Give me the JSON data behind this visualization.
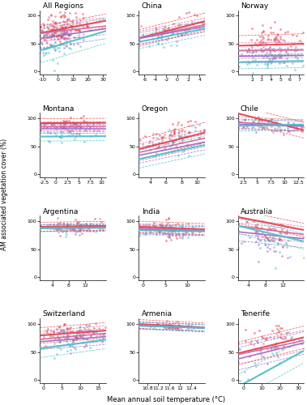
{
  "panels": [
    {
      "title": "All Regions",
      "xlim": [
        -12,
        32
      ],
      "xticks": [
        -10,
        0,
        10,
        20,
        30
      ],
      "ylim": [
        -5,
        110
      ],
      "yticks": [
        0,
        50,
        100
      ],
      "lines": [
        {
          "intercept": 80,
          "slope": 0.5,
          "ci": 12,
          "color": "#e8434b",
          "lw": 1.5
        },
        {
          "intercept": 75,
          "slope": 0.3,
          "ci": 15,
          "color": "#d4669c",
          "lw": 1.2
        },
        {
          "intercept": 68,
          "slope": 0.4,
          "ci": 18,
          "color": "#9b6bc8",
          "lw": 1.2
        },
        {
          "intercept": 55,
          "slope": 0.8,
          "ci": 22,
          "color": "#4dc0c8",
          "lw": 1.5
        }
      ],
      "scatter": [
        {
          "color": "#e8434b",
          "n": 80,
          "xmean": 2,
          "xstd": 8,
          "ymean": 80,
          "ystd": 20,
          "slope": 0.5
        },
        {
          "color": "#d4669c",
          "n": 60,
          "xmean": 2,
          "xstd": 8,
          "ymean": 72,
          "ystd": 22,
          "slope": 0.3
        },
        {
          "color": "#9b6bc8",
          "n": 60,
          "xmean": 2,
          "xstd": 8,
          "ymean": 62,
          "ystd": 25,
          "slope": 0.4
        },
        {
          "color": "#4dc0c8",
          "n": 50,
          "xmean": 2,
          "xstd": 8,
          "ymean": 50,
          "ystd": 28,
          "slope": 0.8
        }
      ]
    },
    {
      "title": "China",
      "xlim": [
        -7,
        5
      ],
      "xticks": [
        -6,
        -4,
        -2,
        0,
        2,
        4
      ],
      "ylim": [
        -5,
        110
      ],
      "yticks": [
        0,
        50,
        100
      ],
      "lines": [
        {
          "intercept": 75,
          "slope": 2.5,
          "ci": 15,
          "color": "#e8434b",
          "lw": 1.5
        },
        {
          "intercept": 72,
          "slope": 2.0,
          "ci": 12,
          "color": "#d4669c",
          "lw": 1.2
        },
        {
          "intercept": 70,
          "slope": 1.8,
          "ci": 10,
          "color": "#9b6bc8",
          "lw": 1.2
        },
        {
          "intercept": 65,
          "slope": 2.0,
          "ci": 12,
          "color": "#4dc0c8",
          "lw": 1.5
        }
      ],
      "scatter": [
        {
          "color": "#e8434b",
          "n": 20,
          "xmean": -1,
          "xstd": 3,
          "ymean": 78,
          "ystd": 18,
          "slope": 2.5
        },
        {
          "color": "#d4669c",
          "n": 15,
          "xmean": -1,
          "xstd": 3,
          "ymean": 72,
          "ystd": 15,
          "slope": 2.0
        },
        {
          "color": "#9b6bc8",
          "n": 15,
          "xmean": -1,
          "xstd": 3,
          "ymean": 68,
          "ystd": 12,
          "slope": 1.8
        },
        {
          "color": "#4dc0c8",
          "n": 15,
          "xmean": -1,
          "xstd": 3,
          "ymean": 62,
          "ystd": 15,
          "slope": 2.0
        }
      ]
    },
    {
      "title": "Norway",
      "xlim": [
        0.5,
        7.5
      ],
      "xticks": [
        2,
        3,
        4,
        5,
        6,
        7
      ],
      "ylim": [
        -5,
        110
      ],
      "yticks": [
        0,
        50,
        100
      ],
      "lines": [
        {
          "intercept": 48,
          "slope": 0.5,
          "ci": 18,
          "color": "#e8434b",
          "lw": 1.5
        },
        {
          "intercept": 38,
          "slope": 0.2,
          "ci": 14,
          "color": "#d4669c",
          "lw": 1.2
        },
        {
          "intercept": 28,
          "slope": 0.2,
          "ci": 12,
          "color": "#9b6bc8",
          "lw": 1.2
        },
        {
          "intercept": 18,
          "slope": 0.3,
          "ci": 12,
          "color": "#4dc0c8",
          "lw": 1.5
        }
      ],
      "scatter": [
        {
          "color": "#e8434b",
          "n": 45,
          "xmean": 4,
          "xstd": 1.5,
          "ymean": 55,
          "ystd": 22,
          "slope": 0.5
        },
        {
          "color": "#d4669c",
          "n": 35,
          "xmean": 4,
          "xstd": 1.5,
          "ymean": 42,
          "ystd": 18,
          "slope": 0.2
        },
        {
          "color": "#9b6bc8",
          "n": 35,
          "xmean": 4,
          "xstd": 1.5,
          "ymean": 32,
          "ystd": 15,
          "slope": 0.2
        },
        {
          "color": "#4dc0c8",
          "n": 30,
          "xmean": 4,
          "xstd": 1.5,
          "ymean": 18,
          "ystd": 12,
          "slope": 0.3
        }
      ]
    },
    {
      "title": "Montana",
      "xlim": [
        -3.5,
        11
      ],
      "xticks": [
        -2.5,
        0.0,
        2.5,
        5.0,
        7.5,
        10.0
      ],
      "ylim": [
        -5,
        110
      ],
      "yticks": [
        0,
        50,
        100
      ],
      "lines": [
        {
          "intercept": 92,
          "slope": 0.05,
          "ci": 8,
          "color": "#e8434b",
          "lw": 1.5
        },
        {
          "intercept": 86,
          "slope": 0.05,
          "ci": 8,
          "color": "#d4669c",
          "lw": 1.2
        },
        {
          "intercept": 82,
          "slope": 0.0,
          "ci": 8,
          "color": "#9b6bc8",
          "lw": 1.2
        },
        {
          "intercept": 68,
          "slope": 0.05,
          "ci": 8,
          "color": "#4dc0c8",
          "lw": 1.5
        }
      ],
      "scatter": [
        {
          "color": "#e8434b",
          "n": 30,
          "xmean": 3,
          "xstd": 3,
          "ymean": 90,
          "ystd": 10,
          "slope": 0.05
        },
        {
          "color": "#d4669c",
          "n": 25,
          "xmean": 3,
          "xstd": 3,
          "ymean": 85,
          "ystd": 8,
          "slope": 0.05
        },
        {
          "color": "#9b6bc8",
          "n": 25,
          "xmean": 3,
          "xstd": 3,
          "ymean": 80,
          "ystd": 10,
          "slope": 0.0
        },
        {
          "color": "#4dc0c8",
          "n": 20,
          "xmean": 3,
          "xstd": 3,
          "ymean": 68,
          "ystd": 12,
          "slope": 0.05
        }
      ]
    },
    {
      "title": "Oregon",
      "xlim": [
        2.5,
        11
      ],
      "xticks": [
        4,
        6,
        8,
        10
      ],
      "ylim": [
        -5,
        110
      ],
      "yticks": [
        0,
        50,
        100
      ],
      "lines": [
        {
          "intercept": 60,
          "slope": 3.5,
          "ci": 18,
          "color": "#e8434b",
          "lw": 1.5
        },
        {
          "intercept": 52,
          "slope": 3.0,
          "ci": 15,
          "color": "#d4669c",
          "lw": 1.2
        },
        {
          "intercept": 46,
          "slope": 2.8,
          "ci": 14,
          "color": "#9b6bc8",
          "lw": 1.2
        },
        {
          "intercept": 40,
          "slope": 3.0,
          "ci": 16,
          "color": "#4dc0c8",
          "lw": 1.5
        }
      ],
      "scatter": [
        {
          "color": "#e8434b",
          "n": 35,
          "xmean": 7,
          "xstd": 2,
          "ymean": 75,
          "ystd": 18,
          "slope": 3.5
        },
        {
          "color": "#d4669c",
          "n": 28,
          "xmean": 7,
          "xstd": 2,
          "ymean": 65,
          "ystd": 16,
          "slope": 3.0
        },
        {
          "color": "#9b6bc8",
          "n": 28,
          "xmean": 7,
          "xstd": 2,
          "ymean": 60,
          "ystd": 16,
          "slope": 2.8
        },
        {
          "color": "#4dc0c8",
          "n": 25,
          "xmean": 7,
          "xstd": 2,
          "ymean": 55,
          "ystd": 18,
          "slope": 3.0
        }
      ]
    },
    {
      "title": "Chile",
      "xlim": [
        1.5,
        13.5
      ],
      "xticks": [
        2.5,
        5.0,
        7.5,
        10.0,
        12.5
      ],
      "ylim": [
        -5,
        110
      ],
      "yticks": [
        0,
        50,
        100
      ],
      "lines": [
        {
          "intercept": 94,
          "slope": -2.5,
          "ci": 14,
          "color": "#e8434b",
          "lw": 1.5
        },
        {
          "intercept": 90,
          "slope": -0.5,
          "ci": 10,
          "color": "#d4669c",
          "lw": 1.2
        },
        {
          "intercept": 88,
          "slope": -0.3,
          "ci": 9,
          "color": "#9b6bc8",
          "lw": 1.2
        },
        {
          "intercept": 88,
          "slope": 0.2,
          "ci": 9,
          "color": "#4dc0c8",
          "lw": 1.5
        }
      ],
      "scatter": [
        {
          "color": "#e8434b",
          "n": 25,
          "xmean": 7,
          "xstd": 3,
          "ymean": 88,
          "ystd": 14,
          "slope": -2.5
        },
        {
          "color": "#d4669c",
          "n": 20,
          "xmean": 7,
          "xstd": 3,
          "ymean": 87,
          "ystd": 10,
          "slope": -0.5
        },
        {
          "color": "#9b6bc8",
          "n": 20,
          "xmean": 7,
          "xstd": 3,
          "ymean": 86,
          "ystd": 9,
          "slope": -0.3
        },
        {
          "color": "#4dc0c8",
          "n": 20,
          "xmean": 7,
          "xstd": 3,
          "ymean": 88,
          "ystd": 8,
          "slope": 0.2
        }
      ]
    },
    {
      "title": "Argentina",
      "xlim": [
        1,
        17
      ],
      "xticks": [
        4,
        8,
        12
      ],
      "ylim": [
        -5,
        110
      ],
      "yticks": [
        0,
        50,
        100
      ],
      "lines": [
        {
          "intercept": 91,
          "slope": 0.1,
          "ci": 8,
          "color": "#e8434b",
          "lw": 1.5
        },
        {
          "intercept": 89,
          "slope": 0.1,
          "ci": 6,
          "color": "#d4669c",
          "lw": 1.2
        },
        {
          "intercept": 88,
          "slope": 0.05,
          "ci": 6,
          "color": "#9b6bc8",
          "lw": 1.2
        },
        {
          "intercept": 88,
          "slope": 0.05,
          "ci": 6,
          "color": "#4dc0c8",
          "lw": 1.5
        }
      ],
      "scatter": [
        {
          "color": "#e8434b",
          "n": 30,
          "xmean": 9,
          "xstd": 3.5,
          "ymean": 90,
          "ystd": 12,
          "slope": 0.1
        },
        {
          "color": "#d4669c",
          "n": 25,
          "xmean": 9,
          "xstd": 3.5,
          "ymean": 88,
          "ystd": 10,
          "slope": 0.1
        },
        {
          "color": "#9b6bc8",
          "n": 25,
          "xmean": 9,
          "xstd": 3.5,
          "ymean": 87,
          "ystd": 10,
          "slope": 0.05
        },
        {
          "color": "#4dc0c8",
          "n": 25,
          "xmean": 9,
          "xstd": 3.5,
          "ymean": 87,
          "ystd": 10,
          "slope": 0.05
        }
      ]
    },
    {
      "title": "India",
      "xlim": [
        -1,
        14
      ],
      "xticks": [
        0,
        5,
        10
      ],
      "ylim": [
        -5,
        110
      ],
      "yticks": [
        0,
        50,
        100
      ],
      "lines": [
        {
          "intercept": 88,
          "slope": -0.3,
          "ci": 10,
          "color": "#e8434b",
          "lw": 1.5
        },
        {
          "intercept": 86,
          "slope": -0.2,
          "ci": 8,
          "color": "#d4669c",
          "lw": 1.2
        },
        {
          "intercept": 84,
          "slope": -0.2,
          "ci": 8,
          "color": "#9b6bc8",
          "lw": 1.2
        },
        {
          "intercept": 83,
          "slope": -0.15,
          "ci": 8,
          "color": "#4dc0c8",
          "lw": 1.5
        }
      ],
      "scatter": [
        {
          "color": "#e8434b",
          "n": 30,
          "xmean": 6,
          "xstd": 3,
          "ymean": 87,
          "ystd": 14,
          "slope": -0.3
        },
        {
          "color": "#d4669c",
          "n": 25,
          "xmean": 6,
          "xstd": 3,
          "ymean": 85,
          "ystd": 12,
          "slope": -0.2
        },
        {
          "color": "#9b6bc8",
          "n": 25,
          "xmean": 6,
          "xstd": 3,
          "ymean": 83,
          "ystd": 12,
          "slope": -0.2
        },
        {
          "color": "#4dc0c8",
          "n": 25,
          "xmean": 6,
          "xstd": 3,
          "ymean": 82,
          "ystd": 12,
          "slope": -0.15
        }
      ]
    },
    {
      "title": "Australia",
      "xlim": [
        1.5,
        17
      ],
      "xticks": [
        4,
        8,
        12
      ],
      "ylim": [
        -5,
        110
      ],
      "yticks": [
        0,
        50,
        100
      ],
      "lines": [
        {
          "intercept": 96,
          "slope": -1.5,
          "ci": 12,
          "color": "#e8434b",
          "lw": 1.5
        },
        {
          "intercept": 84,
          "slope": -1.0,
          "ci": 14,
          "color": "#d4669c",
          "lw": 1.2
        },
        {
          "intercept": 75,
          "slope": -0.8,
          "ci": 16,
          "color": "#9b6bc8",
          "lw": 1.2
        },
        {
          "intercept": 78,
          "slope": -1.8,
          "ci": 14,
          "color": "#4dc0c8",
          "lw": 1.5
        }
      ],
      "scatter": [
        {
          "color": "#e8434b",
          "n": 30,
          "xmean": 9,
          "xstd": 3.5,
          "ymean": 84,
          "ystd": 15,
          "slope": -1.5
        },
        {
          "color": "#d4669c",
          "n": 25,
          "xmean": 9,
          "xstd": 3.5,
          "ymean": 72,
          "ystd": 18,
          "slope": -1.0
        },
        {
          "color": "#9b6bc8",
          "n": 25,
          "xmean": 9,
          "xstd": 3.5,
          "ymean": 62,
          "ystd": 20,
          "slope": -0.8
        },
        {
          "color": "#4dc0c8",
          "n": 25,
          "xmean": 9,
          "xstd": 3.5,
          "ymean": 58,
          "ystd": 22,
          "slope": -1.8
        }
      ]
    },
    {
      "title": "Switzerland",
      "xlim": [
        -1,
        17
      ],
      "xticks": [
        0,
        5,
        10,
        15
      ],
      "ylim": [
        -5,
        110
      ],
      "yticks": [
        0,
        50,
        100
      ],
      "lines": [
        {
          "intercept": 84,
          "slope": 0.5,
          "ci": 14,
          "color": "#e8434b",
          "lw": 1.5
        },
        {
          "intercept": 78,
          "slope": 0.6,
          "ci": 14,
          "color": "#d4669c",
          "lw": 1.2
        },
        {
          "intercept": 73,
          "slope": 0.5,
          "ci": 14,
          "color": "#9b6bc8",
          "lw": 1.2
        },
        {
          "intercept": 64,
          "slope": 0.9,
          "ci": 16,
          "color": "#4dc0c8",
          "lw": 1.5
        }
      ],
      "scatter": [
        {
          "color": "#e8434b",
          "n": 40,
          "xmean": 8,
          "xstd": 4,
          "ymean": 87,
          "ystd": 15,
          "slope": 0.5
        },
        {
          "color": "#d4669c",
          "n": 35,
          "xmean": 8,
          "xstd": 4,
          "ymean": 82,
          "ystd": 18,
          "slope": 0.6
        },
        {
          "color": "#9b6bc8",
          "n": 35,
          "xmean": 8,
          "xstd": 4,
          "ymean": 77,
          "ystd": 18,
          "slope": 0.5
        },
        {
          "color": "#4dc0c8",
          "n": 30,
          "xmean": 8,
          "xstd": 4,
          "ymean": 70,
          "ystd": 20,
          "slope": 0.9
        }
      ]
    },
    {
      "title": "Armenia",
      "xlim": [
        10.5,
        12.9
      ],
      "xticks": [
        10.8,
        11.2,
        11.6,
        12.0,
        12.4
      ],
      "ylim": [
        -5,
        110
      ],
      "yticks": [
        0,
        50,
        100
      ],
      "lines": [
        {
          "intercept": 97,
          "slope": -2.5,
          "ci": 8,
          "color": "#e8434b",
          "lw": 1.5
        },
        {
          "intercept": 96,
          "slope": -2.0,
          "ci": 6,
          "color": "#d4669c",
          "lw": 1.2
        },
        {
          "intercept": 95,
          "slope": -2.0,
          "ci": 6,
          "color": "#9b6bc8",
          "lw": 1.2
        },
        {
          "intercept": 95,
          "slope": -1.5,
          "ci": 6,
          "color": "#4dc0c8",
          "lw": 1.5
        }
      ],
      "scatter": [
        {
          "color": "#e8434b",
          "n": 18,
          "xmean": 11.7,
          "xstd": 0.4,
          "ymean": 97,
          "ystd": 6,
          "slope": -2.5
        },
        {
          "color": "#d4669c",
          "n": 14,
          "xmean": 11.7,
          "xstd": 0.4,
          "ymean": 96,
          "ystd": 5,
          "slope": -2.0
        },
        {
          "color": "#9b6bc8",
          "n": 14,
          "xmean": 11.7,
          "xstd": 0.4,
          "ymean": 95,
          "ystd": 5,
          "slope": -2.0
        },
        {
          "color": "#4dc0c8",
          "n": 10,
          "xmean": 11.7,
          "xstd": 0.4,
          "ymean": 94,
          "ystd": 5,
          "slope": -1.5
        }
      ]
    },
    {
      "title": "Tenerife",
      "xlim": [
        -3,
        33
      ],
      "xticks": [
        0,
        10,
        20,
        30
      ],
      "ylim": [
        -5,
        110
      ],
      "yticks": [
        0,
        50,
        100
      ],
      "lines": [
        {
          "intercept": 62,
          "slope": 0.8,
          "ci": 20,
          "color": "#e8434b",
          "lw": 1.5
        },
        {
          "intercept": 58,
          "slope": 0.7,
          "ci": 18,
          "color": "#d4669c",
          "lw": 1.2
        },
        {
          "intercept": 52,
          "slope": 0.8,
          "ci": 20,
          "color": "#9b6bc8",
          "lw": 1.2
        },
        {
          "intercept": 20,
          "slope": 1.8,
          "ci": 22,
          "color": "#4dc0c8",
          "lw": 1.5
        }
      ],
      "scatter": [
        {
          "color": "#e8434b",
          "n": 25,
          "xmean": 15,
          "xstd": 9,
          "ymean": 74,
          "ystd": 22,
          "slope": 0.8
        },
        {
          "color": "#d4669c",
          "n": 20,
          "xmean": 15,
          "xstd": 9,
          "ymean": 68,
          "ystd": 20,
          "slope": 0.7
        },
        {
          "color": "#9b6bc8",
          "n": 20,
          "xmean": 15,
          "xstd": 9,
          "ymean": 60,
          "ystd": 22,
          "slope": 0.8
        },
        {
          "color": "#4dc0c8",
          "n": 20,
          "xmean": 15,
          "xstd": 9,
          "ymean": 40,
          "ystd": 28,
          "slope": 1.8
        }
      ]
    }
  ],
  "ylabel": "AM associated vegetation cover (%)",
  "xlabel": "Mean annual soil temperature (°C)"
}
